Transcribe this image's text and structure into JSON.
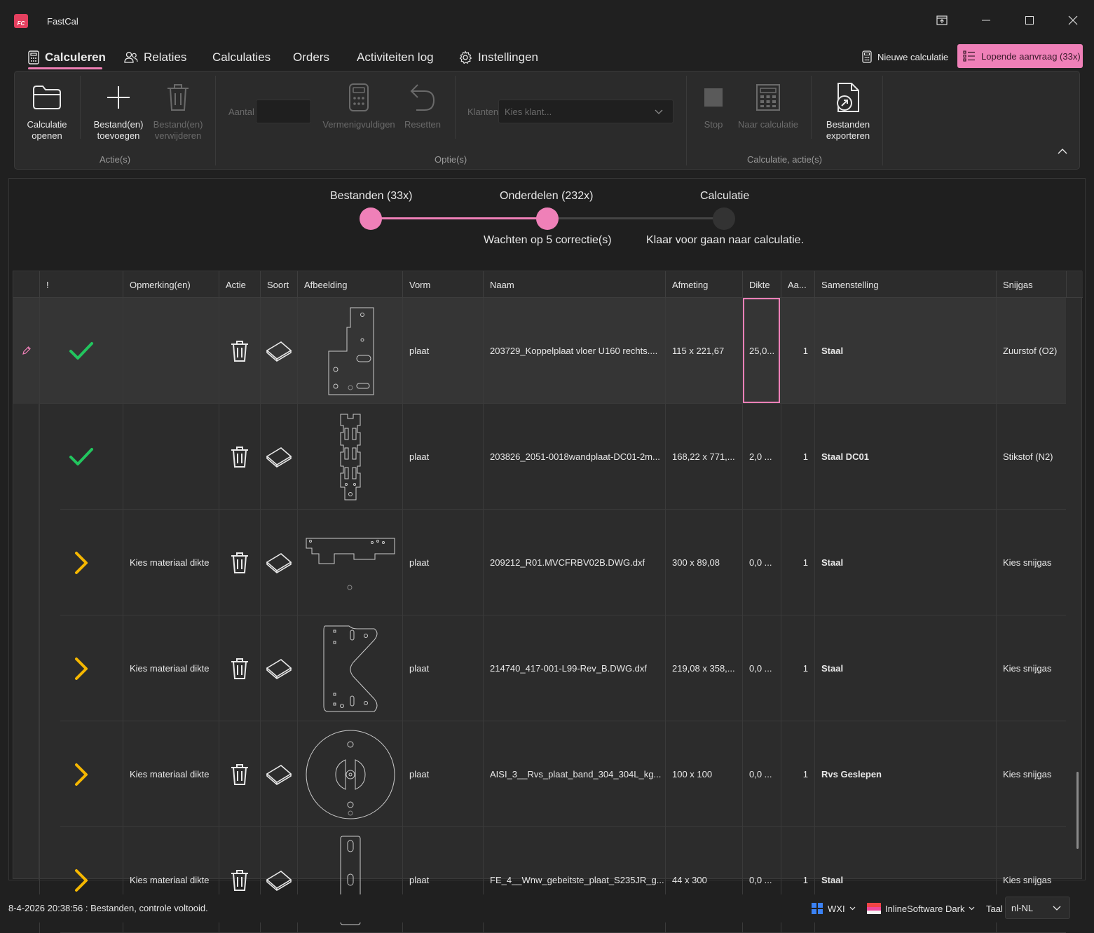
{
  "window": {
    "title": "FastCal",
    "logo_text": "FC"
  },
  "nav": {
    "tabs": [
      {
        "label": "Calculeren"
      },
      {
        "label": "Relaties"
      },
      {
        "label": "Calculaties"
      },
      {
        "label": "Orders"
      },
      {
        "label": "Activiteiten log"
      },
      {
        "label": "Instellingen"
      }
    ],
    "active_tab": "Calculeren",
    "new_calc_label": "Nieuwe calculatie",
    "pending_label": "Lopende aanvraag (33x)"
  },
  "ribbon": {
    "open_label_1": "Calculatie",
    "open_label_2": "openen",
    "add_label_1": "Bestand(en)",
    "add_label_2": "toevoegen",
    "remove_label_1": "Bestand(en)",
    "remove_label_2": "verwijderen",
    "group_actions": "Actie(s)",
    "aantal_label": "Aantal",
    "multiply_label": "Vermenigvuldigen",
    "reset_label": "Resetten",
    "klanten_label": "Klanten",
    "klanten_placeholder": "Kies klant...",
    "group_options": "Optie(s)",
    "stop_label": "Stop",
    "to_calc_label": "Naar calculatie",
    "export_label_1": "Bestanden",
    "export_label_2": "exporteren",
    "group_calc": "Calculatie, actie(s)"
  },
  "stepper": {
    "steps": [
      {
        "label": "Bestanden (33x)",
        "sub": "",
        "state": "done"
      },
      {
        "label": "Onderdelen (232x)",
        "sub": "Wachten op 5 correctie(s)",
        "state": "active"
      },
      {
        "label": "Calculatie",
        "sub": "Klaar voor gaan naar calculatie.",
        "state": "pending"
      }
    ],
    "accent_color": "#ef80b8"
  },
  "grid": {
    "columns": [
      "!",
      "Opmerking(en)",
      "Actie",
      "Soort",
      "Afbeelding",
      "Vorm",
      "Naam",
      "Afmeting",
      "Dikte",
      "Aa...",
      "Samenstelling",
      "Snijgas"
    ],
    "rows": [
      {
        "status": "check",
        "remark": "",
        "shape": "plaat",
        "name": "203729_Koppelplaat vloer U160 rechts....",
        "size": "115 x 221,67",
        "thickness": "25,0...",
        "qty": "1",
        "material": "Staal",
        "gas": "Zuurstof (O2)",
        "image": "part-koppelplaat"
      },
      {
        "status": "check",
        "remark": "",
        "shape": "plaat",
        "name": "203826_2051-0018wandplaat-DC01-2m...",
        "size": "168,22 x 771,...",
        "thickness": "2,0 ...",
        "qty": "1",
        "material": "Staal DC01",
        "gas": "Stikstof (N2)",
        "image": "part-wandplaat"
      },
      {
        "status": "warn",
        "remark": "Kies materiaal dikte",
        "shape": "plaat",
        "name": "209212_R01.MVCFRBV02B.DWG.dxf",
        "size": "300 x 89,08",
        "thickness": "0,0 ...",
        "qty": "1",
        "material": "Staal",
        "gas": "Kies snijgas",
        "image": "part-strip"
      },
      {
        "status": "warn",
        "remark": "Kies materiaal dikte",
        "shape": "plaat",
        "name": "214740_417-001-L99-Rev_B.DWG.dxf",
        "size": "219,08 x 358,...",
        "thickness": "0,0 ...",
        "qty": "1",
        "material": "Staal",
        "gas": "Kies snijgas",
        "image": "part-bracket"
      },
      {
        "status": "warn",
        "remark": "Kies materiaal dikte",
        "shape": "plaat",
        "name": "AISI_3__Rvs_plaat_band_304_304L_kg...",
        "size": "100 x 100",
        "thickness": "0,0 ...",
        "qty": "1",
        "material": "Rvs Geslepen",
        "gas": "Kies snijgas",
        "image": "part-disc"
      },
      {
        "status": "warn",
        "remark": "Kies materiaal dikte",
        "shape": "plaat",
        "name": "FE_4__Wnw_gebeitste_plaat_S235JR_g...",
        "size": "44 x 300",
        "thickness": "0,0 ...",
        "qty": "1",
        "material": "Staal",
        "gas": "Kies snijgas",
        "image": "part-slot"
      }
    ]
  },
  "statusbar": {
    "message": "8-4-2026 20:38:56 : Bestanden, controle voltooid.",
    "workspace": "WXI",
    "theme": "InlineSoftware Dark",
    "language_label": "Taal",
    "language_value": "nl-NL"
  },
  "colors": {
    "accent": "#ef80b8",
    "success": "#22c55e",
    "warning": "#f5b700",
    "background": "#202020"
  }
}
